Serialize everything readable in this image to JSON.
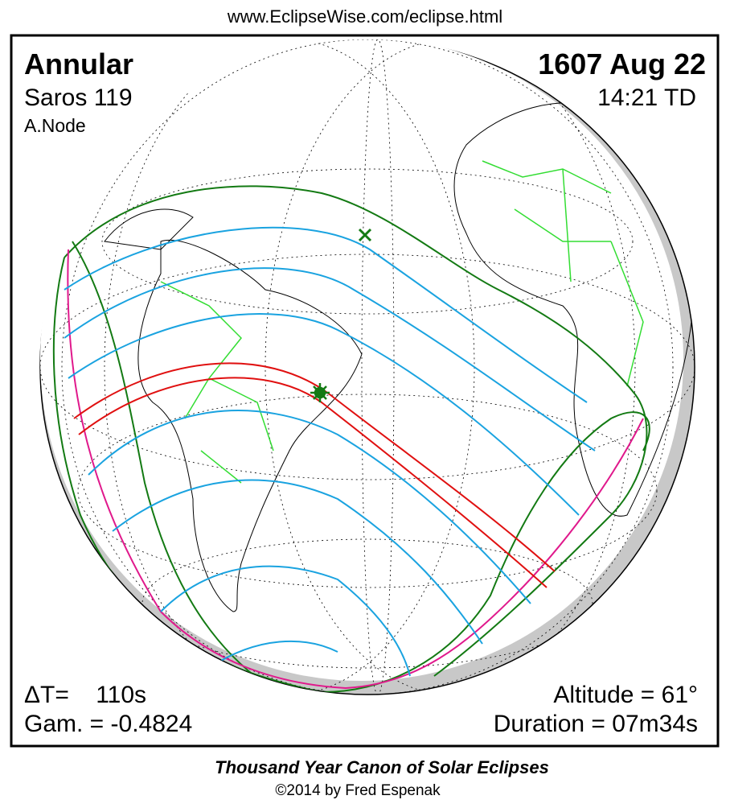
{
  "header": {
    "url": "www.EclipseWise.com/eclipse.html"
  },
  "panel": {
    "eclipse_type": "Annular",
    "saros": "Saros 119",
    "node": "A.Node",
    "date": "1607 Aug 22",
    "time": "14:21 TD",
    "delta_t": "ΔT=    110s",
    "gamma": "Gam. = -0.4824",
    "altitude": "Altitude = 61°",
    "duration": "Duration = 07m34s"
  },
  "footer": {
    "title": "Thousand Year Canon of Solar Eclipses",
    "copyright": "©2014 by Fred Espenak"
  }
}
